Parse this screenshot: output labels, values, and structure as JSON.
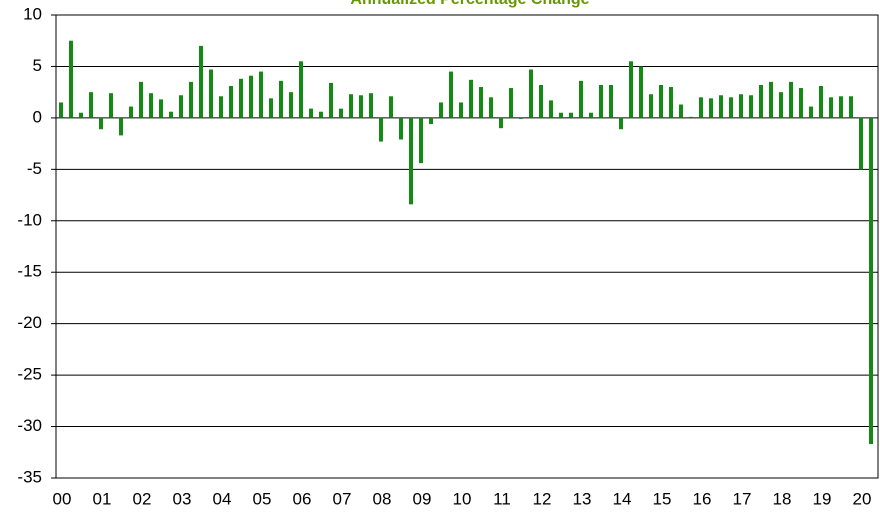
{
  "chart_data": {
    "type": "bar",
    "title": "Annualized Percentage Change",
    "categories": [
      "00",
      null,
      null,
      null,
      "01",
      null,
      null,
      null,
      "02",
      null,
      null,
      null,
      "03",
      null,
      null,
      null,
      "04",
      null,
      null,
      null,
      "05",
      null,
      null,
      null,
      "06",
      null,
      null,
      null,
      "07",
      null,
      null,
      null,
      "08",
      null,
      null,
      null,
      "09",
      null,
      null,
      null,
      "10",
      null,
      null,
      null,
      "11",
      null,
      null,
      null,
      "12",
      null,
      null,
      null,
      "13",
      null,
      null,
      null,
      "14",
      null,
      null,
      null,
      "15",
      null,
      null,
      null,
      "16",
      null,
      null,
      null,
      "17",
      null,
      null,
      null,
      "18",
      null,
      null,
      null,
      "19",
      null,
      null,
      null,
      "20",
      null
    ],
    "values": [
      1.5,
      7.5,
      0.5,
      2.5,
      -1.1,
      2.4,
      -1.7,
      1.1,
      3.5,
      2.4,
      1.8,
      0.6,
      2.2,
      3.5,
      7.0,
      4.7,
      2.1,
      3.1,
      3.8,
      4.1,
      4.5,
      1.9,
      3.6,
      2.5,
      5.5,
      0.9,
      0.6,
      3.4,
      0.9,
      2.3,
      2.2,
      2.4,
      -2.3,
      2.1,
      -2.1,
      -8.4,
      -4.4,
      -0.6,
      1.5,
      4.5,
      1.5,
      3.7,
      3.0,
      2.0,
      -1.0,
      2.9,
      -0.1,
      4.7,
      3.2,
      1.7,
      0.5,
      0.5,
      3.6,
      0.5,
      3.2,
      3.2,
      -1.1,
      5.5,
      5.0,
      2.3,
      3.2,
      3.0,
      1.3,
      0.1,
      2.0,
      1.9,
      2.2,
      2.0,
      2.3,
      2.2,
      3.2,
      3.5,
      2.5,
      3.5,
      2.9,
      1.1,
      3.1,
      2.0,
      2.1,
      2.1,
      -5.0,
      -31.7
    ],
    "color": "#138a13",
    "ylim": [
      -35,
      10
    ],
    "yticks": [
      10,
      5,
      0,
      -5,
      -10,
      -15,
      -20,
      -25,
      -30,
      -35
    ],
    "grid": true
  }
}
